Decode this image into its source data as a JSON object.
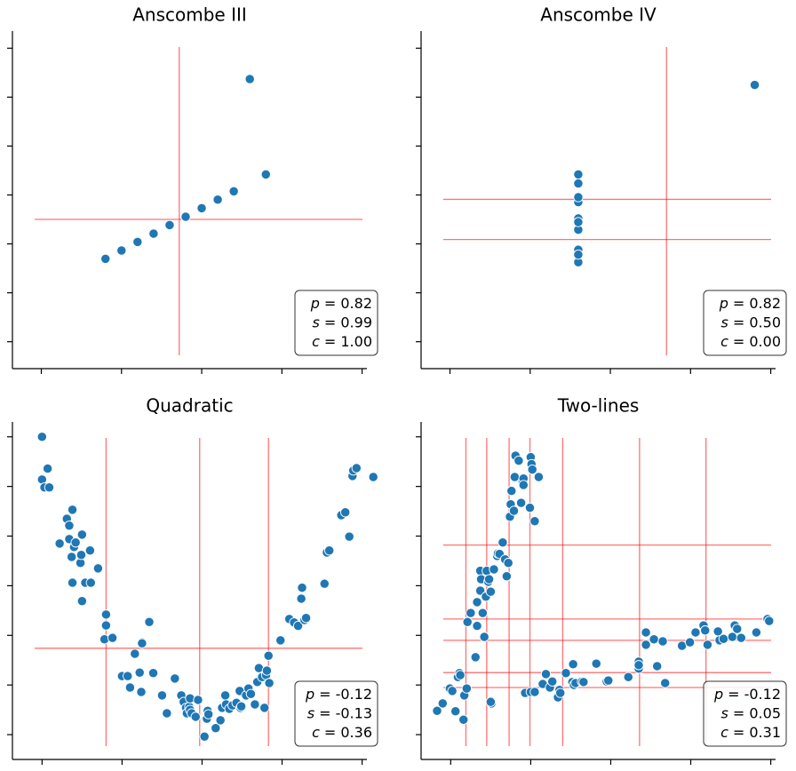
{
  "chart_data": [
    {
      "type": "scatter",
      "title": "Anscombe III",
      "x": [
        10,
        8,
        13,
        9,
        11,
        14,
        6,
        4,
        12,
        7,
        5
      ],
      "y": [
        7.46,
        6.77,
        12.74,
        7.11,
        7.81,
        8.84,
        6.08,
        5.39,
        8.15,
        6.42,
        5.73
      ],
      "color": "#1f77b4",
      "line_color": "#ff0000",
      "vlines": [
        8.6
      ],
      "hlines": [
        7.0
      ],
      "xlim": [
        -1.8,
        20.3
      ],
      "ylim": [
        0.9,
        14.7
      ],
      "xticks": [
        0,
        5,
        10,
        15,
        20
      ],
      "yticks": [
        2,
        4,
        6,
        8,
        10,
        12,
        14
      ],
      "stats": [
        {
          "symbol": "p",
          "text": "= 0.82"
        },
        {
          "symbol": "s",
          "text": "= 0.99"
        },
        {
          "symbol": "c",
          "text": "= 1.00"
        }
      ]
    },
    {
      "type": "scatter",
      "title": "Anscombe IV",
      "x": [
        8,
        8,
        8,
        8,
        8,
        8,
        8,
        19,
        8,
        8,
        8
      ],
      "y": [
        6.58,
        5.76,
        7.71,
        8.84,
        8.47,
        7.04,
        5.25,
        12.5,
        5.56,
        7.91,
        6.89
      ],
      "color": "#1f77b4",
      "line_color": "#ff0000",
      "vlines": [
        13.5
      ],
      "hlines": [
        7.82,
        6.18
      ],
      "xlim": [
        -1.8,
        20.3
      ],
      "ylim": [
        0.9,
        14.7
      ],
      "xticks": [
        0,
        5,
        10,
        15,
        20
      ],
      "yticks": [
        2,
        4,
        6,
        8,
        10,
        12,
        14
      ],
      "stats": [
        {
          "symbol": "p",
          "text": "= 0.82"
        },
        {
          "symbol": "s",
          "text": "= 0.50"
        },
        {
          "symbol": "c",
          "text": "= 0.00"
        }
      ]
    },
    {
      "type": "scatter",
      "title": "Quadratic",
      "x": [
        0,
        0,
        0.03,
        0.09,
        0.07,
        0.22,
        0.31,
        0.34,
        0.38,
        0.34,
        0.37,
        0.4,
        0.42,
        0.38,
        0.48,
        0.5,
        0.49,
        0.54,
        0.5,
        0.61,
        0.6,
        0.7,
        0.8,
        0.8,
        0.78,
        0.88,
        1.0,
        1.07,
        1.1,
        1.16,
        1.22,
        1.25,
        1.24,
        1.34,
        1.25,
        1.39,
        1.5,
        1.56,
        1.66,
        1.74,
        1.77,
        1.8,
        1.81,
        1.84,
        1.85,
        1.85,
        1.87,
        1.92,
        1.95,
        2.03,
        2.06,
        2.07,
        2.08,
        2.17,
        2.23,
        2.25,
        2.29,
        2.3,
        2.34,
        2.38,
        2.43,
        2.47,
        2.48,
        2.49,
        2.55,
        2.58,
        2.61,
        2.66,
        2.69,
        2.71,
        2.75,
        2.78,
        2.8,
        2.81,
        2.83,
        2.84,
        2.98,
        3.09,
        3.15,
        3.2,
        3.24,
        3.25,
        3.28,
        3.3,
        3.53,
        3.56,
        3.59,
        3.74,
        3.79,
        3.84,
        3.88,
        3.89,
        3.93,
        4.14
      ],
      "y": [
        6.0,
        5.14,
        4.98,
        4.98,
        5.36,
        3.85,
        4.35,
        4.21,
        4.53,
        3.94,
        3.58,
        3.78,
        3.87,
        3.06,
        3.46,
        4.03,
        3.62,
        3.06,
        2.69,
        3.06,
        3.71,
        3.35,
        2.42,
        2.2,
        1.92,
        1.95,
        1.18,
        1.18,
        0.95,
        1.63,
        1.25,
        1.86,
        0.86,
        2.27,
        1.84,
        1.24,
        0.79,
        0.43,
        1.13,
        0.79,
        0.66,
        0.54,
        0.43,
        0.56,
        0.73,
        0.5,
        0.43,
        0.36,
        0.7,
        -0.04,
        0.32,
        0.48,
        0.41,
        0.13,
        0.29,
        0.54,
        0.79,
        0.61,
        0.52,
        0.59,
        0.64,
        0.88,
        0.54,
        0.57,
        0.79,
        0.93,
        0.82,
        0.61,
        1.06,
        1.34,
        1.16,
        0.54,
        1.2,
        1.29,
        1.59,
        1.04,
        1.9,
        2.33,
        2.26,
        2.19,
        2.74,
        2.96,
        2.31,
        2.35,
        3.04,
        3.67,
        3.71,
        4.42,
        4.48,
        3.99,
        5.21,
        5.32,
        5.37,
        5.19
      ],
      "color": "#1f77b4",
      "line_color": "#ff0000",
      "vlines": [
        0.8,
        1.97,
        2.83
      ],
      "hlines": [
        1.74
      ],
      "xlim": [
        -0.37,
        4.06
      ],
      "ylim": [
        -0.5,
        6.3
      ],
      "xticks": [
        0,
        1,
        2,
        3,
        4
      ],
      "yticks": [
        0,
        1,
        2,
        3,
        4,
        5,
        6
      ],
      "stats": [
        {
          "symbol": "p",
          "text": "= -0.12"
        },
        {
          "symbol": "s",
          "text": "= -0.13"
        },
        {
          "symbol": "c",
          "text": "= 0.36"
        }
      ]
    },
    {
      "type": "scatter",
      "title": "Two-lines",
      "x": [
        -0.17,
        -0.1,
        -0.01,
        0.02,
        0.06,
        0.09,
        0.11,
        0.12,
        0.16,
        0.17,
        0.21,
        0.2,
        0.25,
        0.31,
        0.33,
        0.33,
        0.37,
        0.37,
        0.38,
        0.4,
        0.42,
        0.44,
        0.45,
        0.47,
        0.48,
        0.5,
        0.51,
        0.5,
        0.54,
        0.58,
        0.59,
        0.61,
        0.65,
        0.68,
        0.7,
        0.72,
        0.74,
        0.75,
        0.76,
        0.79,
        0.8,
        0.81,
        0.85,
        0.88,
        0.9,
        0.91,
        0.93,
        0.91,
        0.99,
        1.0,
        1.0,
        1.01,
        1.02,
        1.05,
        1.05,
        1.1,
        1.15,
        1.19,
        1.24,
        1.27,
        1.34,
        1.36,
        1.37,
        1.44,
        1.52,
        1.53,
        1.54,
        1.56,
        1.64,
        1.66,
        1.82,
        1.95,
        1.97,
        2.22,
        2.35,
        2.35,
        2.35,
        2.44,
        2.44,
        2.54,
        2.58,
        2.65,
        2.68,
        2.89,
        2.99,
        3.06,
        3.16,
        3.18,
        3.21,
        3.34,
        3.36,
        3.41,
        3.52,
        3.55,
        3.58,
        3.63,
        3.82,
        3.96,
        3.98
      ],
      "y": [
        0.48,
        0.63,
        0.93,
        0.88,
        0.47,
        1.16,
        1.24,
        1.2,
        0.3,
        0.79,
        2.27,
        0.93,
        2.45,
        1.56,
        2.19,
        2.67,
        2.9,
        3.3,
        3.13,
        2.45,
        1.97,
        2.78,
        3.3,
        3.08,
        3.13,
        2.88,
        0.63,
        0.66,
        3.33,
        3.6,
        3.65,
        3.64,
        3.87,
        3.53,
        3.19,
        3.46,
        4.39,
        4.64,
        4.91,
        4.51,
        5.19,
        5.62,
        5.52,
        4.67,
        5.1,
        5.16,
        0.84,
        5.03,
        4.57,
        0.86,
        5.59,
        5.45,
        5.34,
        4.3,
        0.86,
        5.19,
        1.02,
        1.22,
        0.95,
        1.07,
        0.75,
        0.9,
        0.84,
        1.24,
        1.06,
        1.42,
        1.0,
        1.04,
        1.07,
        1.06,
        1.43,
        1.07,
        1.09,
        1.16,
        1.33,
        1.47,
        1.4,
        2.06,
        1.81,
        1.92,
        1.38,
        1.88,
        1.04,
        1.79,
        1.86,
        2.06,
        2.2,
        2.1,
        1.81,
        2.08,
        1.9,
        1.93,
        1.97,
        2.2,
        2.13,
        1.95,
        2.06,
        2.33,
        2.29
      ],
      "color": "#1f77b4",
      "line_color": "#ff0000",
      "vlines": [
        0.19,
        0.45,
        0.73,
        0.99,
        1.4,
        2.36,
        3.19
      ],
      "hlines": [
        3.82,
        2.33,
        1.9,
        1.25,
        0.95
      ],
      "xlim": [
        -0.37,
        4.06
      ],
      "ylim": [
        -0.5,
        6.3
      ],
      "xticks": [
        0,
        1,
        2,
        3,
        4
      ],
      "yticks": [
        0,
        1,
        2,
        3,
        4,
        5,
        6
      ],
      "stats": [
        {
          "symbol": "p",
          "text": "= -0.12"
        },
        {
          "symbol": "s",
          "text": "= 0.05"
        },
        {
          "symbol": "c",
          "text": "= 0.31"
        }
      ]
    }
  ]
}
